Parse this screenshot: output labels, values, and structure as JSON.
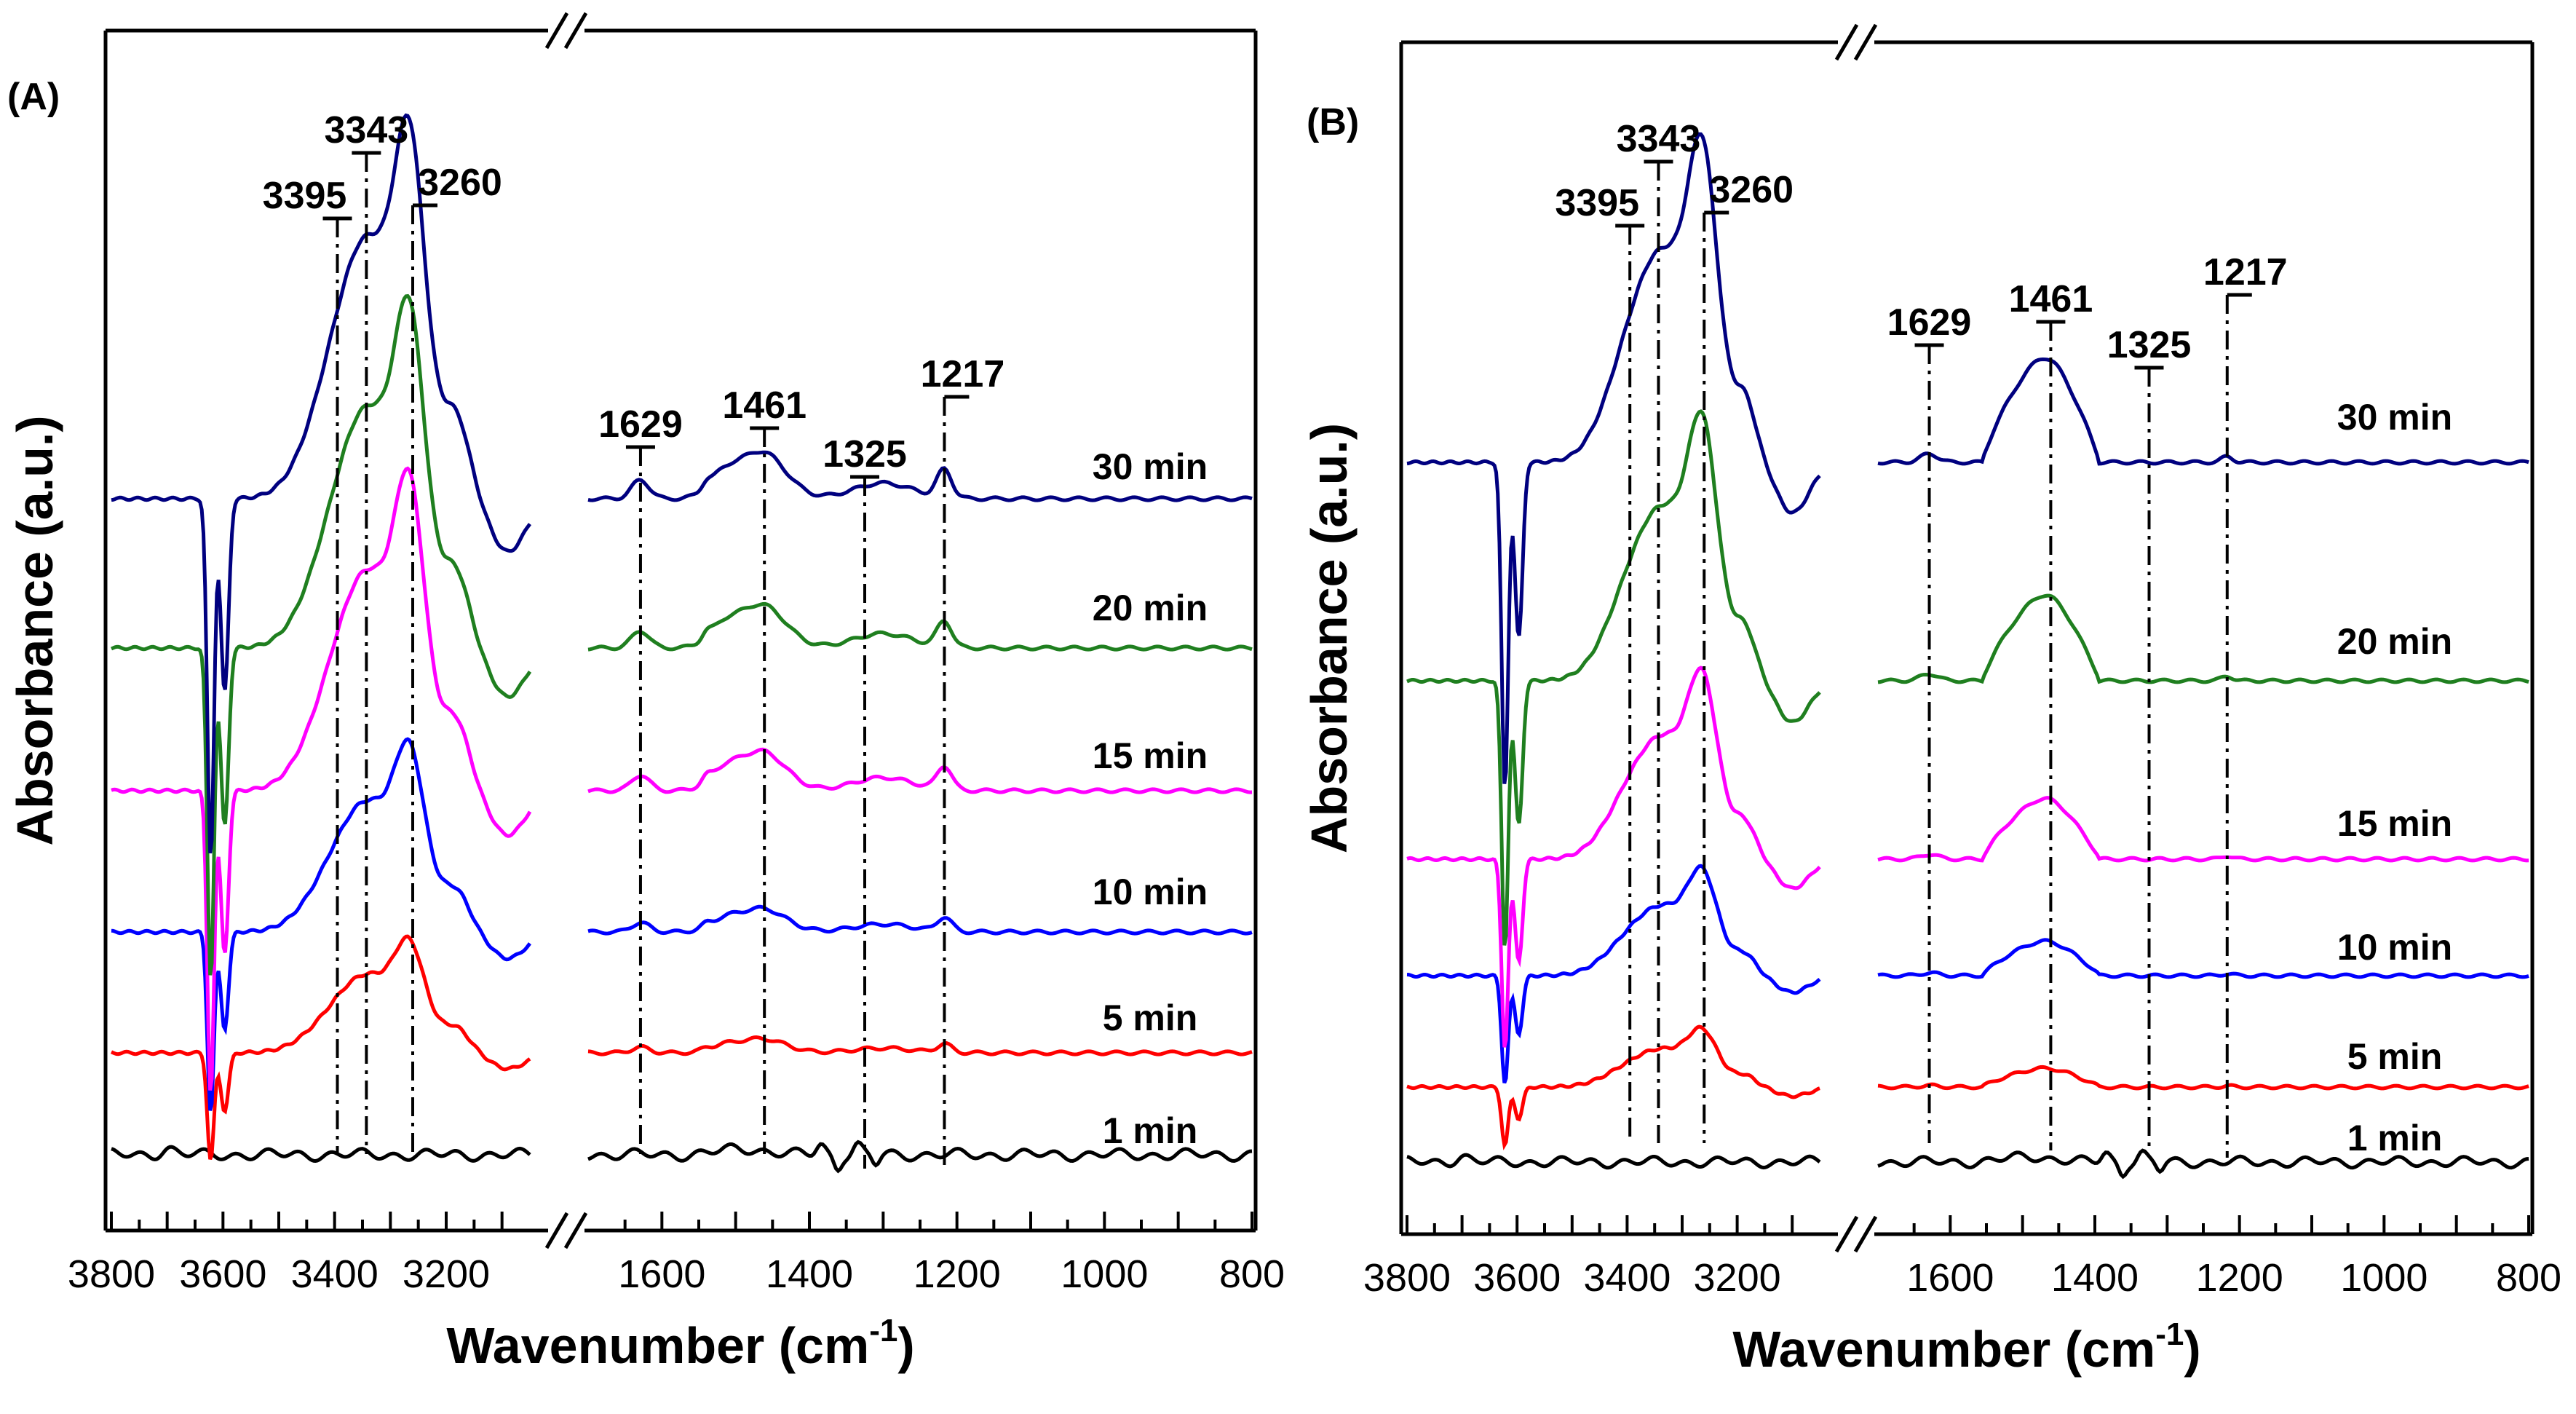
{
  "chart_data": [
    {
      "type": "line",
      "panel_label": "(A)",
      "xlabel_main": "Wavenumber (cm",
      "xlabel_sup": "-1",
      "xlabel_close": ")",
      "ylabel": "Absorbance (a.u.)",
      "x_ticks_left": [
        "3800",
        "3600",
        "3400",
        "3200"
      ],
      "x_ticks_right": [
        "1600",
        "1400",
        "1200",
        "1000",
        "800"
      ],
      "x_range_left": [
        3800,
        3050
      ],
      "x_range_right": [
        1700,
        800
      ],
      "axis_break": "//",
      "peaks": [
        "3395",
        "3343",
        "3260",
        "1629",
        "1461",
        "1325",
        "1217"
      ],
      "series": [
        {
          "name": "1 min",
          "color": "#000000",
          "scale": 0.0
        },
        {
          "name": "5 min",
          "color": "#ff0000",
          "scale": 0.3
        },
        {
          "name": "10 min",
          "color": "#0000ff",
          "scale": 0.5
        },
        {
          "name": "15 min",
          "color": "#ff00ff",
          "scale": 0.84
        },
        {
          "name": "20 min",
          "color": "#1f7f1f",
          "scale": 0.92
        },
        {
          "name": "30 min",
          "color": "#00007f",
          "scale": 1.0
        }
      ]
    },
    {
      "type": "line",
      "panel_label": "(B)",
      "xlabel_main": "Wavenumber (cm",
      "xlabel_sup": "-1",
      "xlabel_close": ")",
      "ylabel": "Absorbance (a.u.)",
      "x_ticks_left": [
        "3800",
        "3600",
        "3400",
        "3200"
      ],
      "x_ticks_right": [
        "1600",
        "1400",
        "1200",
        "1000",
        "800"
      ],
      "x_range_left": [
        3800,
        3050
      ],
      "x_range_right": [
        1700,
        800
      ],
      "axis_break": "//",
      "peaks": [
        "3395",
        "3343",
        "3260",
        "1629",
        "1461",
        "1325",
        "1217"
      ],
      "series": [
        {
          "name": "1 min",
          "color": "#000000",
          "scale": 0.0
        },
        {
          "name": "5 min",
          "color": "#ff0000",
          "scale": 0.18
        },
        {
          "name": "10 min",
          "color": "#0000ff",
          "scale": 0.33
        },
        {
          "name": "15 min",
          "color": "#ff00ff",
          "scale": 0.58
        },
        {
          "name": "20 min",
          "color": "#1f7f1f",
          "scale": 0.82
        },
        {
          "name": "30 min",
          "color": "#00007f",
          "scale": 1.0
        }
      ]
    }
  ]
}
